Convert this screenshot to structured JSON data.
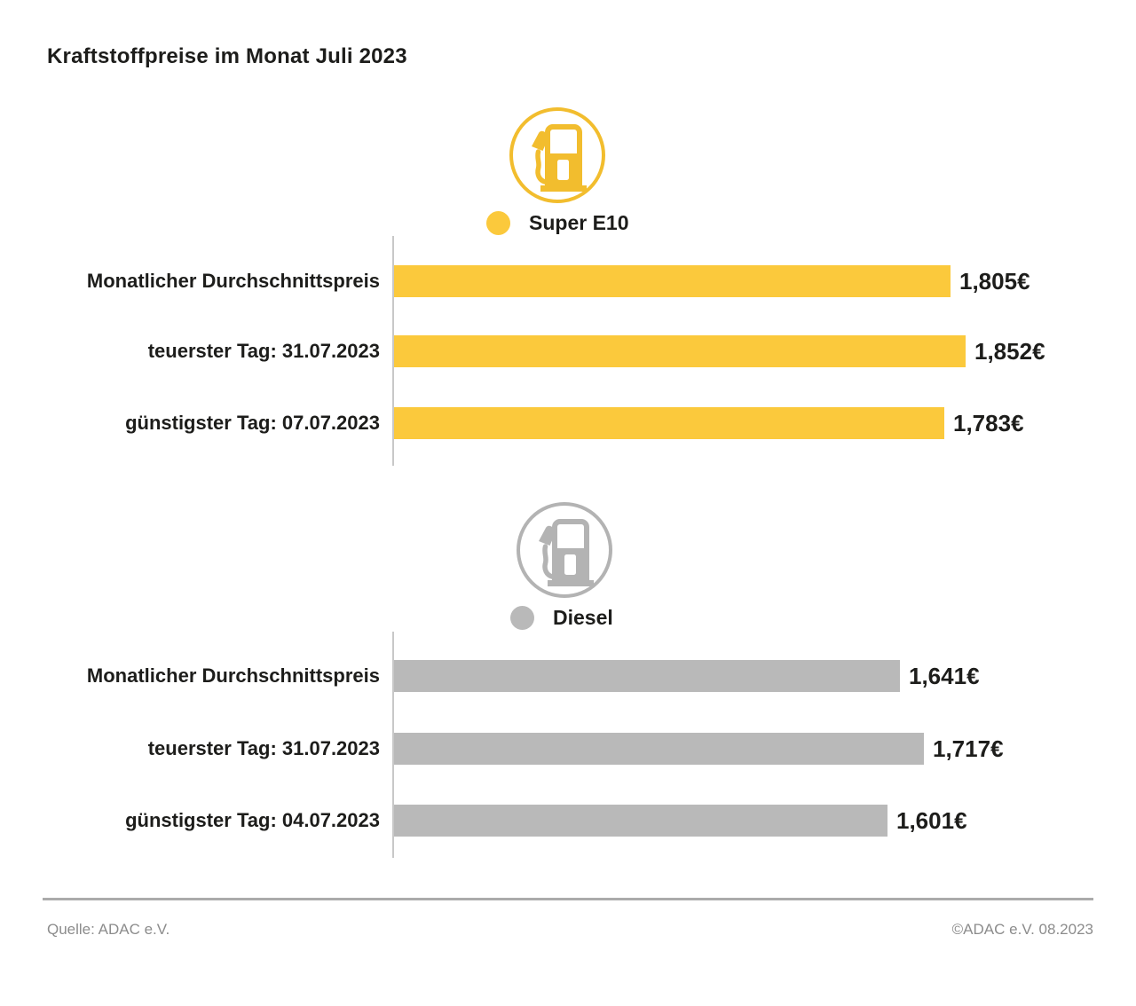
{
  "title": "Kraftstoffpreise im Monat Juli 2023",
  "colors": {
    "super_e10_yellow": "#fbc93c",
    "diesel_gray": "#b9b9b9",
    "axis_gray": "#c8c8c8",
    "divider_gray": "#ababab",
    "footer_text_gray": "#8c8c8c",
    "text_black": "#1d1d1b"
  },
  "chart_data": [
    {
      "type": "bar",
      "orientation": "horizontal",
      "legend": "Super E10",
      "icon": "fuel-pump-icon",
      "color": "#fbc93c",
      "unit": "€",
      "grid": false,
      "xlim": [
        0,
        1.9
      ],
      "categories": [
        "Monatlicher Durchschnittspreis",
        "teuerster Tag: 31.07.2023",
        "günstigster Tag: 07.07.2023"
      ],
      "values": [
        1.805,
        1.852,
        1.783
      ],
      "value_labels": [
        "1,805€",
        "1,852€",
        "1,783€"
      ]
    },
    {
      "type": "bar",
      "orientation": "horizontal",
      "legend": "Diesel",
      "icon": "fuel-pump-icon",
      "color": "#b9b9b9",
      "unit": "€",
      "grid": false,
      "xlim": [
        0,
        1.9
      ],
      "categories": [
        "Monatlicher Durchschnittspreis",
        "teuerster Tag: 31.07.2023",
        "günstigster Tag: 04.07.2023"
      ],
      "values": [
        1.641,
        1.717,
        1.601
      ],
      "value_labels": [
        "1,641€",
        "1,717€",
        "1,601€"
      ]
    }
  ],
  "footer": {
    "source": "Quelle: ADAC e.V.",
    "copyright": "©ADAC e.V. 08.2023"
  }
}
